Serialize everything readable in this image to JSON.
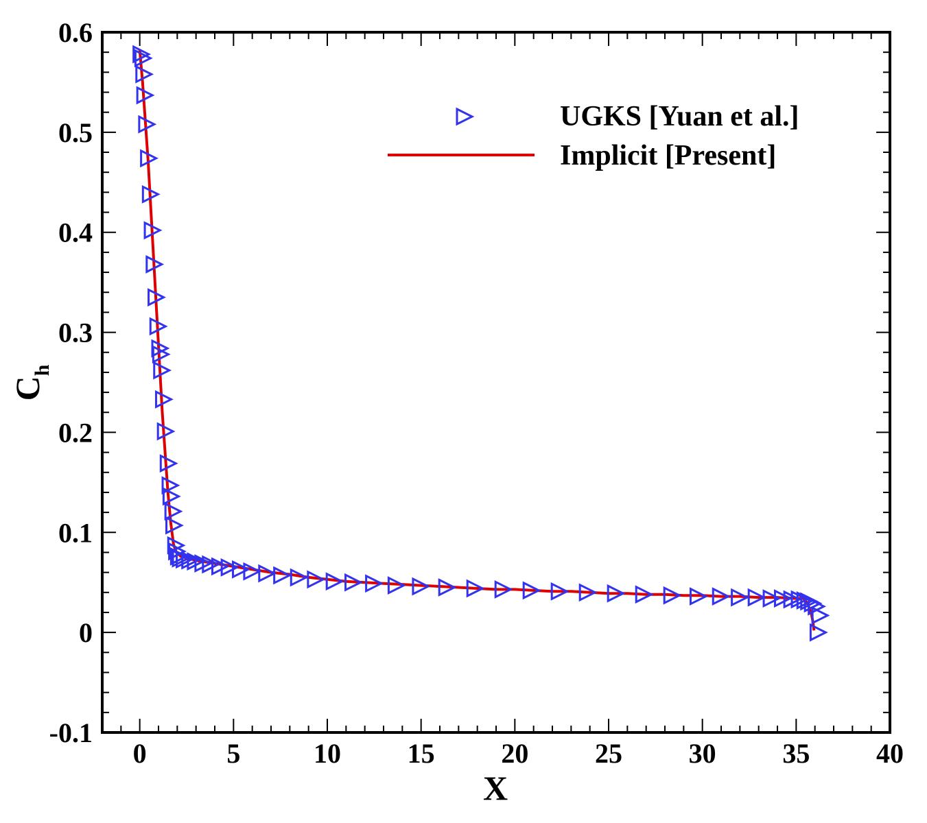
{
  "colors": {
    "marker": "#3333ee",
    "line": "#dd0000",
    "axis": "#000000",
    "background": "#ffffff"
  },
  "chart_data": {
    "type": "scatter",
    "title": "",
    "xlabel": "X",
    "ylabel_main": "C",
    "ylabel_sub": "h",
    "xlim": [
      -2,
      40
    ],
    "ylim": [
      -0.1,
      0.6
    ],
    "xticks": [
      0,
      5,
      10,
      15,
      20,
      25,
      30,
      35,
      40
    ],
    "xtick_labels": [
      "0",
      "5",
      "10",
      "15",
      "20",
      "25",
      "30",
      "35",
      "40"
    ],
    "yticks": [
      -0.1,
      0,
      0.1,
      0.2,
      0.3,
      0.4,
      0.5,
      0.6
    ],
    "ytick_labels": [
      "-0.1",
      "0",
      "0.1",
      "0.2",
      "0.3",
      "0.4",
      "0.5",
      "0.6"
    ],
    "grid": false,
    "legend_position": "top-right",
    "series": [
      {
        "name": "UGKS [Yuan et al.]",
        "kind": "markers",
        "marker": "triangle-right",
        "color": "#3333ee",
        "points": [
          [
            0.0,
            0.578
          ],
          [
            0.1,
            0.574
          ],
          [
            0.15,
            0.558
          ],
          [
            0.2,
            0.537
          ],
          [
            0.3,
            0.508
          ],
          [
            0.4,
            0.474
          ],
          [
            0.5,
            0.438
          ],
          [
            0.6,
            0.402
          ],
          [
            0.7,
            0.368
          ],
          [
            0.8,
            0.335
          ],
          [
            0.9,
            0.306
          ],
          [
            1.0,
            0.284
          ],
          [
            1.05,
            0.278
          ],
          [
            1.1,
            0.262
          ],
          [
            1.2,
            0.233
          ],
          [
            1.3,
            0.201
          ],
          [
            1.45,
            0.169
          ],
          [
            1.55,
            0.147
          ],
          [
            1.6,
            0.136
          ],
          [
            1.7,
            0.121
          ],
          [
            1.75,
            0.107
          ],
          [
            1.85,
            0.087
          ],
          [
            1.9,
            0.081
          ],
          [
            2.0,
            0.076
          ],
          [
            2.1,
            0.074
          ],
          [
            2.3,
            0.073
          ],
          [
            2.6,
            0.072
          ],
          [
            2.9,
            0.071
          ],
          [
            3.3,
            0.069
          ],
          [
            3.7,
            0.068
          ],
          [
            4.2,
            0.066
          ],
          [
            4.7,
            0.065
          ],
          [
            5.3,
            0.063
          ],
          [
            5.9,
            0.061
          ],
          [
            6.7,
            0.059
          ],
          [
            7.5,
            0.057
          ],
          [
            8.4,
            0.055
          ],
          [
            9.3,
            0.053
          ],
          [
            10.3,
            0.051
          ],
          [
            11.3,
            0.05
          ],
          [
            12.4,
            0.049
          ],
          [
            13.6,
            0.047
          ],
          [
            14.9,
            0.046
          ],
          [
            16.3,
            0.045
          ],
          [
            17.8,
            0.044
          ],
          [
            19.3,
            0.043
          ],
          [
            20.8,
            0.042
          ],
          [
            22.3,
            0.041
          ],
          [
            23.8,
            0.04
          ],
          [
            25.3,
            0.039
          ],
          [
            26.8,
            0.038
          ],
          [
            28.3,
            0.037
          ],
          [
            29.7,
            0.036
          ],
          [
            30.9,
            0.036
          ],
          [
            31.9,
            0.035
          ],
          [
            32.8,
            0.035
          ],
          [
            33.6,
            0.034
          ],
          [
            34.2,
            0.034
          ],
          [
            34.7,
            0.033
          ],
          [
            35.1,
            0.033
          ],
          [
            35.4,
            0.032
          ],
          [
            35.6,
            0.031
          ],
          [
            35.8,
            0.029
          ],
          [
            36.0,
            0.026
          ],
          [
            36.2,
            0.017
          ],
          [
            36.1,
            0.0
          ]
        ]
      },
      {
        "name": "Implicit [Present]",
        "kind": "line",
        "color": "#dd0000",
        "points": [
          [
            0.0,
            0.582
          ],
          [
            0.15,
            0.55
          ],
          [
            0.3,
            0.51
          ],
          [
            0.45,
            0.47
          ],
          [
            0.6,
            0.42
          ],
          [
            0.75,
            0.37
          ],
          [
            0.9,
            0.32
          ],
          [
            1.05,
            0.27
          ],
          [
            1.2,
            0.22
          ],
          [
            1.35,
            0.18
          ],
          [
            1.5,
            0.14
          ],
          [
            1.65,
            0.11
          ],
          [
            1.8,
            0.088
          ],
          [
            1.95,
            0.08
          ],
          [
            2.2,
            0.076
          ],
          [
            3.0,
            0.072
          ],
          [
            4.0,
            0.069
          ],
          [
            5.0,
            0.066
          ],
          [
            6.0,
            0.063
          ],
          [
            7.0,
            0.06
          ],
          [
            8.0,
            0.058
          ],
          [
            9.0,
            0.055
          ],
          [
            10.0,
            0.053
          ],
          [
            11.0,
            0.051
          ],
          [
            12.0,
            0.05
          ],
          [
            13.0,
            0.049
          ],
          [
            14.0,
            0.048
          ],
          [
            15.0,
            0.047
          ],
          [
            16.0,
            0.046
          ],
          [
            17.0,
            0.045
          ],
          [
            18.0,
            0.044
          ],
          [
            19.0,
            0.043
          ],
          [
            20.0,
            0.043
          ],
          [
            21.0,
            0.042
          ],
          [
            22.0,
            0.041
          ],
          [
            23.0,
            0.041
          ],
          [
            24.0,
            0.04
          ],
          [
            25.0,
            0.039
          ],
          [
            26.0,
            0.039
          ],
          [
            27.0,
            0.038
          ],
          [
            28.0,
            0.038
          ],
          [
            29.0,
            0.037
          ],
          [
            30.0,
            0.037
          ],
          [
            31.0,
            0.036
          ],
          [
            32.0,
            0.036
          ],
          [
            33.0,
            0.035
          ],
          [
            34.0,
            0.035
          ],
          [
            35.0,
            0.034
          ],
          [
            35.4,
            0.034
          ],
          [
            35.6,
            0.029
          ],
          [
            35.8,
            0.02
          ],
          [
            35.9,
            0.01
          ],
          [
            35.95,
            0.002
          ]
        ]
      }
    ]
  }
}
